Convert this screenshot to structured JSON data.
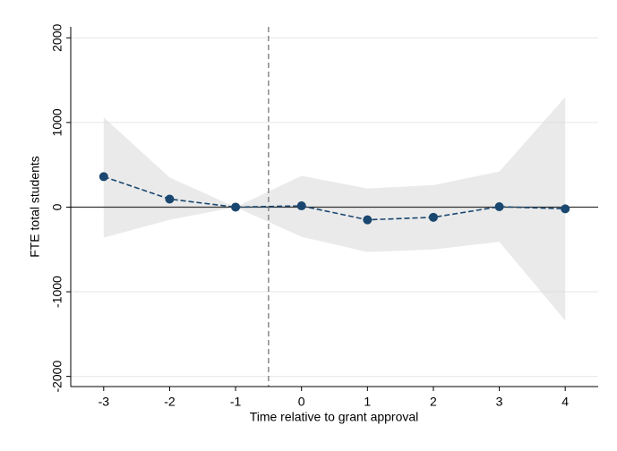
{
  "chart_data": {
    "type": "line",
    "x": [
      -3,
      -2,
      -1,
      0,
      1,
      2,
      3,
      4
    ],
    "series": [
      {
        "values": [
          360,
          95,
          0,
          15,
          -150,
          -120,
          5,
          -20
        ],
        "color": "#1a476f"
      }
    ],
    "ci_upper": [
      1060,
      350,
      0,
      370,
      220,
      260,
      420,
      1300
    ],
    "ci_lower": [
      -360,
      -150,
      0,
      -350,
      -530,
      -500,
      -410,
      -1340
    ],
    "band_color": "#d9d9d9",
    "xlabel": "Time relative to grant approval",
    "ylabel": "FTE total students",
    "xlim": [
      -3.5,
      4.5
    ],
    "xticks": [
      -3,
      -2,
      -1,
      0,
      1,
      2,
      3,
      4
    ],
    "ylim": [
      -2120,
      2130
    ],
    "yticks": [
      -2000,
      -1000,
      0,
      1000,
      2000
    ],
    "grid": true,
    "vline": -0.5,
    "hline": 0
  }
}
